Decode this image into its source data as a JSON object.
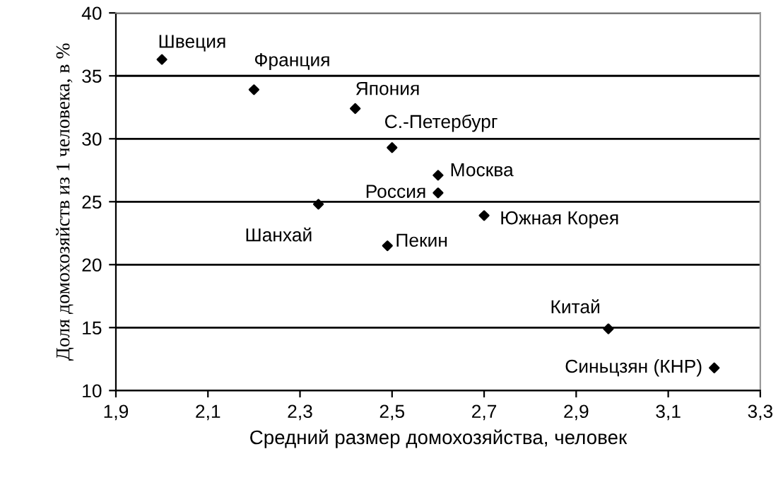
{
  "chart_data": {
    "type": "scatter",
    "xlabel": "Средний размер домохозяйства, человек",
    "ylabel": "Доля домохозяйств из 1 человека, в %",
    "x": [
      2.0,
      2.2,
      2.42,
      2.5,
      2.6,
      2.6,
      2.34,
      2.49,
      2.7,
      2.97,
      3.2
    ],
    "series": [
      {
        "color": "#000000",
        "values": [
          36.3,
          33.9,
          32.4,
          29.3,
          27.1,
          25.7,
          24.8,
          21.5,
          23.9,
          14.9,
          11.8
        ]
      }
    ],
    "annotations": [
      {
        "text": "Швеция",
        "x": 2.0,
        "y": 36.3
      },
      {
        "text": "Франция",
        "x": 2.2,
        "y": 33.9
      },
      {
        "text": "Япония",
        "x": 2.42,
        "y": 32.4
      },
      {
        "text": "С.-Петербург",
        "x": 2.5,
        "y": 29.3
      },
      {
        "text": "Москва",
        "x": 2.6,
        "y": 27.1
      },
      {
        "text": "Россия",
        "x": 2.6,
        "y": 25.7
      },
      {
        "text": "Шанхай",
        "x": 2.34,
        "y": 24.8
      },
      {
        "text": "Пекин",
        "x": 2.49,
        "y": 21.5
      },
      {
        "text": "Южная Корея",
        "x": 2.7,
        "y": 23.9
      },
      {
        "text": "Китай",
        "x": 2.97,
        "y": 14.9
      },
      {
        "text": "Синьцзян (КНР)",
        "x": 3.2,
        "y": 11.8
      }
    ],
    "xlim": [
      1.9,
      3.3
    ],
    "xticks": [
      {
        "value": 1.9,
        "label": "1,9"
      },
      {
        "value": 2.1,
        "label": "2,1"
      },
      {
        "value": 2.3,
        "label": "2,3"
      },
      {
        "value": 2.5,
        "label": "2,5"
      },
      {
        "value": 2.7,
        "label": "2,7"
      },
      {
        "value": 2.9,
        "label": "2,9"
      },
      {
        "value": 3.1,
        "label": "3,1"
      },
      {
        "value": 3.3,
        "label": "3,3"
      }
    ],
    "ylim": [
      10,
      40
    ],
    "yticks": [
      10,
      15,
      20,
      25,
      30,
      35,
      40
    ],
    "grid": "y",
    "marker": "diamond"
  }
}
